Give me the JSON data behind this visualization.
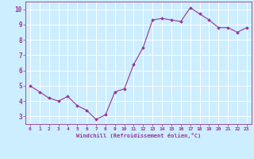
{
  "x": [
    0,
    1,
    2,
    3,
    4,
    5,
    6,
    7,
    8,
    9,
    10,
    11,
    12,
    13,
    14,
    15,
    16,
    17,
    18,
    19,
    20,
    21,
    22,
    23
  ],
  "y": [
    5.0,
    4.6,
    4.2,
    4.0,
    4.3,
    3.7,
    3.4,
    2.8,
    3.1,
    4.6,
    4.8,
    6.4,
    7.5,
    9.3,
    9.4,
    9.3,
    9.2,
    10.1,
    9.7,
    9.3,
    8.8,
    8.8,
    8.5,
    8.8
  ],
  "line_color": "#993399",
  "marker": "D",
  "marker_size": 1.8,
  "line_width": 0.8,
  "background_color": "#cceeff",
  "grid_color": "#ffffff",
  "xlabel": "Windchill (Refroidissement éolien,°C)",
  "xlabel_color": "#993399",
  "tick_color": "#993399",
  "xlim": [
    -0.5,
    23.5
  ],
  "ylim": [
    2.5,
    10.5
  ],
  "yticks": [
    3,
    4,
    5,
    6,
    7,
    8,
    9,
    10
  ],
  "xticks": [
    0,
    1,
    2,
    3,
    4,
    5,
    6,
    7,
    8,
    9,
    10,
    11,
    12,
    13,
    14,
    15,
    16,
    17,
    18,
    19,
    20,
    21,
    22,
    23
  ],
  "font_family": "monospace",
  "xtick_fontsize": 4.5,
  "ytick_fontsize": 5.5,
  "xlabel_fontsize": 5.0
}
